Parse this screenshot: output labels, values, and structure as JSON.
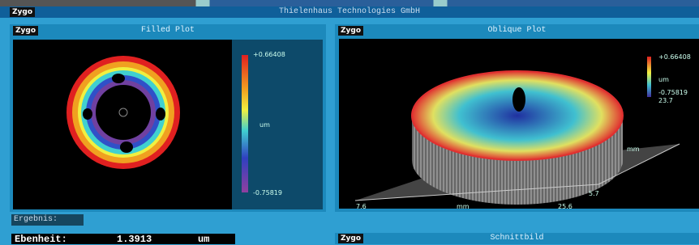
{
  "title_bar": {
    "logo": "Zygo",
    "title": "Thielenhaus Technologies GmbH"
  },
  "filled_plot": {
    "logo": "Zygo",
    "title": "Filled Plot",
    "scale_max": "+0.66408",
    "unit": "um",
    "scale_min": "-0.75819"
  },
  "oblique_plot": {
    "logo": "Zygo",
    "title": "Oblique Plot",
    "scale_max": "+0.66408",
    "unit": "um",
    "scale_min": "-0.75819",
    "scale_extra": "23.7",
    "axis_right_unit": "mm",
    "axis_right_value": "5.7",
    "axis_x_start": "7.6",
    "axis_x_unit": "mm",
    "axis_x_end": "25.6"
  },
  "results": {
    "heading": "Ergebnis:",
    "label": "Ebenheit:",
    "value": "1.3913",
    "unit": "um"
  },
  "section_plot": {
    "logo": "Zygo",
    "title": "Schnittbild"
  }
}
